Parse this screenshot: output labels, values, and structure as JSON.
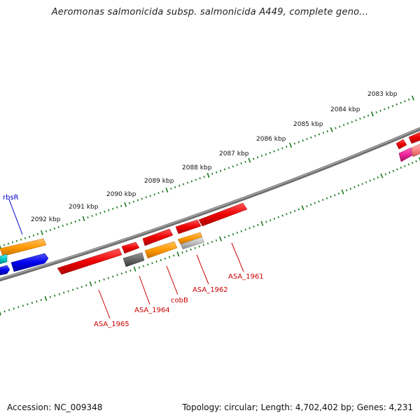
{
  "title": "Aeromonas salmonicida subsp. salmonicida A449, complete geno...",
  "footer": {
    "accession": "Accession: NC_009348",
    "topology": "Topology: circular; Length: 4,702,402 bp; Genes: 4,231"
  },
  "kbp_labels": [
    "2083 kbp",
    "2084 kbp",
    "2085 kbp",
    "2086 kbp",
    "2087 kbp",
    "2088 kbp",
    "2089 kbp",
    "2090 kbp",
    "2091 kbp",
    "2092 kbp"
  ],
  "gene_labels": [
    {
      "text": "rbsR",
      "color": "#0000cc"
    },
    {
      "text": "ASA_1961",
      "color": "#cc0000"
    },
    {
      "text": "ASA_1962",
      "color": "#cc0000"
    },
    {
      "text": "cobB",
      "color": "#cc0000"
    },
    {
      "text": "ASA_1964",
      "color": "#cc0000"
    },
    {
      "text": "ASA_1965",
      "color": "#cc0000"
    }
  ],
  "colors": {
    "backbone": "#808080",
    "tick": "#1a7a1a",
    "red": "#ee0000",
    "orange": "#ff9900",
    "blue": "#0000ee",
    "cyan": "#00cccc",
    "gray": "#666666",
    "lightgray": "#bbbbbb",
    "pink": "#ff8888",
    "magenta": "#ee2299"
  }
}
